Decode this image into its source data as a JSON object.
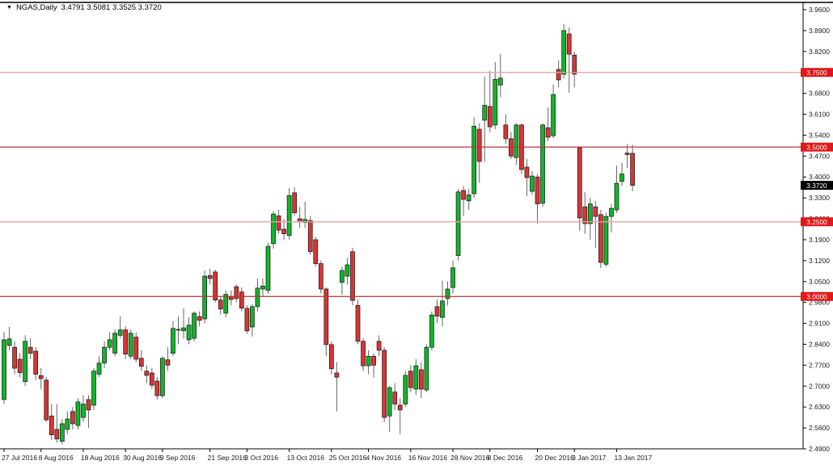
{
  "title": {
    "symbol_period": "NGAS,Daily",
    "ohlc": "3.4791 3.5081 3.3525 3.3720"
  },
  "colors": {
    "up": "#12b42a",
    "down": "#d93535",
    "wick": "#666666",
    "body_outline": "#151515",
    "level_strong": "#c03333",
    "level_light": "#e8a0a0",
    "marker_bg": "#e01818",
    "marker_text": "#ffffff",
    "current_bg": "#000000",
    "current_text": "#ffffff",
    "axis": "#000000",
    "tick_text": "#1a1a1a"
  },
  "chart_data": {
    "type": "candlestick",
    "symbol": "NGAS",
    "timeframe": "Daily",
    "current_bar": {
      "open": 3.4791,
      "high": 3.5081,
      "low": 3.3525,
      "close": 3.372
    },
    "y_axis": {
      "min": 2.49,
      "max": 3.96,
      "tick_step": 0.07,
      "ticks": [
        "3.9600",
        "3.8900",
        "3.8200",
        "3.7500",
        "3.6800",
        "3.6100",
        "3.5400",
        "3.4700",
        "3.4000",
        "3.3300",
        "3.2600",
        "3.1900",
        "3.1200",
        "3.0500",
        "2.9800",
        "2.9100",
        "2.8400",
        "2.7700",
        "2.7000",
        "2.6300",
        "2.5600",
        "2.4900"
      ]
    },
    "x_axis": {
      "labels": [
        {
          "text": "27 Jul 2016",
          "candle_index": 0
        },
        {
          "text": "8 Aug 2016",
          "candle_index": 7
        },
        {
          "text": "18 Aug 2016",
          "candle_index": 15
        },
        {
          "text": "30 Aug 2016",
          "candle_index": 23
        },
        {
          "text": "9 Sep 2016",
          "candle_index": 30
        },
        {
          "text": "21 Sep 2016",
          "candle_index": 39
        },
        {
          "text": "3 Oct 2016",
          "candle_index": 46
        },
        {
          "text": "13 Oct 2016",
          "candle_index": 54
        },
        {
          "text": "25 Oct 2016",
          "candle_index": 62
        },
        {
          "text": "4 Nov 2016",
          "candle_index": 69
        },
        {
          "text": "16 Nov 2016",
          "candle_index": 77
        },
        {
          "text": "28 Nov 2016",
          "candle_index": 85
        },
        {
          "text": "8 Dec 2016",
          "candle_index": 92
        },
        {
          "text": "20 Dec 2016",
          "candle_index": 101
        },
        {
          "text": "3 Jan 2017",
          "candle_index": 108
        },
        {
          "text": "13 Jan 2017",
          "candle_index": 116
        }
      ]
    },
    "levels": [
      {
        "price": 3.75,
        "label": "3.7500",
        "emphasis": "light"
      },
      {
        "price": 3.5,
        "label": "3.5000",
        "emphasis": "strong"
      },
      {
        "price": 3.25,
        "label": "3.2500",
        "emphasis": "light"
      },
      {
        "price": 3.0,
        "label": "3.0000",
        "emphasis": "strong"
      }
    ],
    "price_marker": {
      "price": 3.372,
      "label": "3.3720"
    },
    "candles": [
      [
        2.655,
        2.882,
        2.64,
        2.855
      ],
      [
        2.836,
        2.898,
        2.82,
        2.858
      ],
      [
        2.83,
        2.85,
        2.74,
        2.76
      ],
      [
        2.79,
        2.81,
        2.73,
        2.745
      ],
      [
        2.715,
        2.87,
        2.7,
        2.85
      ],
      [
        2.83,
        2.86,
        2.79,
        2.81
      ],
      [
        2.817,
        2.83,
        2.72,
        2.74
      ],
      [
        2.735,
        2.76,
        2.69,
        2.725
      ],
      [
        2.72,
        2.73,
        2.58,
        2.587
      ],
      [
        2.6,
        2.64,
        2.52,
        2.537
      ],
      [
        2.555,
        2.64,
        2.51,
        2.523
      ],
      [
        2.515,
        2.59,
        2.505,
        2.574
      ],
      [
        2.555,
        2.615,
        2.54,
        2.59
      ],
      [
        2.615,
        2.63,
        2.555,
        2.574
      ],
      [
        2.568,
        2.66,
        2.555,
        2.647
      ],
      [
        2.595,
        2.67,
        2.58,
        2.64
      ],
      [
        2.655,
        2.67,
        2.56,
        2.62
      ],
      [
        2.636,
        2.76,
        2.62,
        2.75
      ],
      [
        2.74,
        2.8,
        2.73,
        2.777
      ],
      [
        2.777,
        2.85,
        2.76,
        2.83
      ],
      [
        2.83,
        2.88,
        2.82,
        2.855
      ],
      [
        2.81,
        2.89,
        2.8,
        2.877
      ],
      [
        2.87,
        2.933,
        2.86,
        2.888
      ],
      [
        2.888,
        2.9,
        2.79,
        2.807
      ],
      [
        2.8,
        2.89,
        2.79,
        2.877
      ],
      [
        2.864,
        2.88,
        2.78,
        2.79
      ],
      [
        2.793,
        2.82,
        2.75,
        2.766
      ],
      [
        2.75,
        2.77,
        2.71,
        2.736
      ],
      [
        2.744,
        2.76,
        2.69,
        2.703
      ],
      [
        2.717,
        2.73,
        2.655,
        2.668
      ],
      [
        2.668,
        2.8,
        2.66,
        2.793
      ],
      [
        2.788,
        2.83,
        2.75,
        2.77
      ],
      [
        2.81,
        2.917,
        2.8,
        2.893
      ],
      [
        2.888,
        2.933,
        2.84,
        2.89
      ],
      [
        2.885,
        2.96,
        2.86,
        2.895
      ],
      [
        2.855,
        2.93,
        2.84,
        2.904
      ],
      [
        2.86,
        2.95,
        2.85,
        2.944
      ],
      [
        2.933,
        2.95,
        2.9,
        2.92
      ],
      [
        2.925,
        3.087,
        2.91,
        3.068
      ],
      [
        3.07,
        3.093,
        3.04,
        3.06
      ],
      [
        3.082,
        3.09,
        2.98,
        2.988
      ],
      [
        2.988,
        3.0,
        2.94,
        2.958
      ],
      [
        2.944,
        3.02,
        2.93,
        3.007
      ],
      [
        3.0,
        3.02,
        2.97,
        2.99
      ],
      [
        3.033,
        3.04,
        2.98,
        2.993
      ],
      [
        3.015,
        3.03,
        2.95,
        2.961
      ],
      [
        2.96,
        2.97,
        2.875,
        2.885
      ],
      [
        2.898,
        2.975,
        2.866,
        2.966
      ],
      [
        2.966,
        3.06,
        2.95,
        3.028
      ],
      [
        3.025,
        3.06,
        3.0,
        3.035
      ],
      [
        3.02,
        3.18,
        3.01,
        3.168
      ],
      [
        3.177,
        3.285,
        3.16,
        3.276
      ],
      [
        3.27,
        3.29,
        3.21,
        3.222
      ],
      [
        3.225,
        3.26,
        3.19,
        3.21
      ],
      [
        3.204,
        3.363,
        3.19,
        3.338
      ],
      [
        3.347,
        3.366,
        3.27,
        3.28
      ],
      [
        3.26,
        3.3,
        3.23,
        3.25
      ],
      [
        3.248,
        3.317,
        3.23,
        3.258
      ],
      [
        3.254,
        3.27,
        3.14,
        3.15
      ],
      [
        3.19,
        3.2,
        3.1,
        3.11
      ],
      [
        3.11,
        3.12,
        3.01,
        3.025
      ],
      [
        3.025,
        3.03,
        2.8,
        2.839
      ],
      [
        2.839,
        2.85,
        2.74,
        2.758
      ],
      [
        2.744,
        2.78,
        2.615,
        2.73
      ],
      [
        3.047,
        3.1,
        3.006,
        3.087
      ],
      [
        3.068,
        3.13,
        3.04,
        3.106
      ],
      [
        3.15,
        3.163,
        2.97,
        2.987
      ],
      [
        2.97,
        2.99,
        2.84,
        2.85
      ],
      [
        2.85,
        2.86,
        2.75,
        2.768
      ],
      [
        2.768,
        2.82,
        2.74,
        2.8
      ],
      [
        2.8,
        2.81,
        2.728,
        2.77
      ],
      [
        2.85,
        2.87,
        2.8,
        2.82
      ],
      [
        2.82,
        2.83,
        2.58,
        2.595
      ],
      [
        2.6,
        2.7,
        2.547,
        2.695
      ],
      [
        2.68,
        2.71,
        2.62,
        2.64
      ],
      [
        2.636,
        2.66,
        2.54,
        2.62
      ],
      [
        2.64,
        2.75,
        2.63,
        2.736
      ],
      [
        2.75,
        2.77,
        2.68,
        2.695
      ],
      [
        2.69,
        2.79,
        2.67,
        2.768
      ],
      [
        2.755,
        2.78,
        2.66,
        2.69
      ],
      [
        2.687,
        2.84,
        2.68,
        2.83
      ],
      [
        2.83,
        2.95,
        2.82,
        2.938
      ],
      [
        2.966,
        2.99,
        2.91,
        2.934
      ],
      [
        2.93,
        3.053,
        2.9,
        2.985
      ],
      [
        2.993,
        3.05,
        2.97,
        3.025
      ],
      [
        3.03,
        3.12,
        3.01,
        3.096
      ],
      [
        3.137,
        3.36,
        3.12,
        3.35
      ],
      [
        3.355,
        3.37,
        3.27,
        3.325
      ],
      [
        3.32,
        3.36,
        3.29,
        3.34
      ],
      [
        3.344,
        3.6,
        3.33,
        3.57
      ],
      [
        3.56,
        3.58,
        3.38,
        3.452
      ],
      [
        3.59,
        3.736,
        3.45,
        3.64
      ],
      [
        3.636,
        3.755,
        3.55,
        3.568
      ],
      [
        3.574,
        3.785,
        3.56,
        3.727
      ],
      [
        3.708,
        3.812,
        3.668,
        3.731
      ],
      [
        3.574,
        3.61,
        3.51,
        3.528
      ],
      [
        3.528,
        3.55,
        3.46,
        3.47
      ],
      [
        3.465,
        3.58,
        3.44,
        3.574
      ],
      [
        3.574,
        3.58,
        3.41,
        3.425
      ],
      [
        3.433,
        3.46,
        3.336,
        3.398
      ],
      [
        3.352,
        3.42,
        3.34,
        3.403
      ],
      [
        3.4,
        3.41,
        3.244,
        3.31
      ],
      [
        3.312,
        3.58,
        3.3,
        3.574
      ],
      [
        3.565,
        3.633,
        3.52,
        3.533
      ],
      [
        3.538,
        3.71,
        3.53,
        3.676
      ],
      [
        3.76,
        3.79,
        3.7,
        3.725
      ],
      [
        3.744,
        3.911,
        3.73,
        3.89
      ],
      [
        3.879,
        3.9,
        3.682,
        3.811
      ],
      [
        3.808,
        3.82,
        3.7,
        3.744
      ],
      [
        3.498,
        3.5,
        3.22,
        3.263
      ],
      [
        3.3,
        3.35,
        3.21,
        3.244
      ],
      [
        3.244,
        3.33,
        3.19,
        3.31
      ],
      [
        3.3,
        3.32,
        3.163,
        3.268
      ],
      [
        3.274,
        3.29,
        3.095,
        3.114
      ],
      [
        3.108,
        3.28,
        3.1,
        3.268
      ],
      [
        3.268,
        3.31,
        3.214,
        3.295
      ],
      [
        3.29,
        3.438,
        3.28,
        3.379
      ],
      [
        3.385,
        3.447,
        3.37,
        3.41
      ],
      [
        3.48,
        3.51,
        3.43,
        3.475
      ],
      [
        3.4791,
        3.5081,
        3.3525,
        3.372
      ]
    ]
  }
}
